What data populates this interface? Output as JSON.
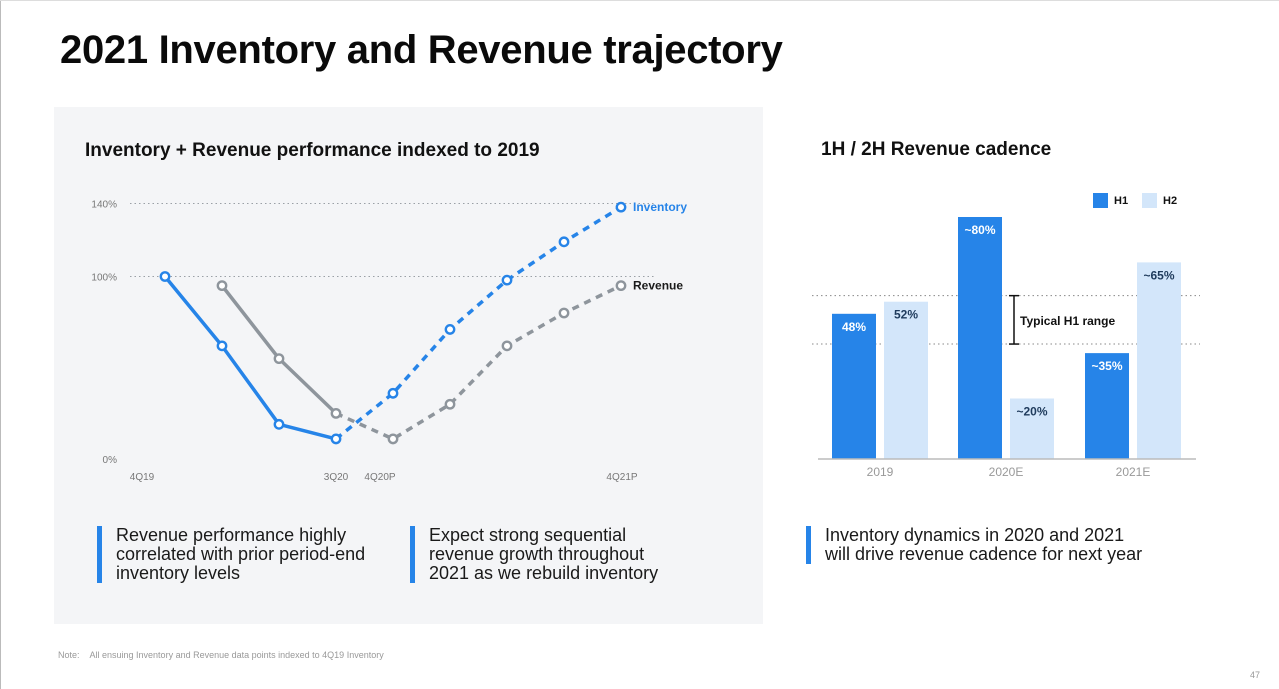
{
  "slide_title": "2021 Inventory and Revenue trajectory",
  "chart_data": [
    {
      "type": "line",
      "title": "Inventory + Revenue performance indexed to 2019",
      "x_ticks": [
        "4Q19",
        "3Q20",
        "4Q20P",
        "4Q21P"
      ],
      "y_ticks": [
        "0%",
        "100%",
        "140%"
      ],
      "ylim": [
        0,
        140
      ],
      "grid": "dotted lines at 100% and 140%",
      "series": [
        {
          "name": "Inventory",
          "color": "#2684e8",
          "actual": [
            [
              0,
              100
            ],
            [
              1,
              62
            ],
            [
              2,
              19
            ],
            [
              3,
              11
            ]
          ],
          "projected": [
            [
              3,
              11
            ],
            [
              4,
              36
            ],
            [
              5,
              71
            ],
            [
              6,
              98
            ],
            [
              7,
              119
            ],
            [
              8,
              138
            ]
          ]
        },
        {
          "name": "Revenue",
          "color": "#8e959c",
          "actual": [
            [
              1,
              95
            ],
            [
              2,
              55
            ],
            [
              3,
              25
            ]
          ],
          "projected": [
            [
              3,
              25
            ],
            [
              4,
              11
            ],
            [
              5,
              30
            ],
            [
              6,
              62
            ],
            [
              7,
              80
            ],
            [
              8,
              95
            ]
          ]
        }
      ]
    },
    {
      "type": "bar",
      "title": "1H / 2H Revenue cadence",
      "categories": [
        "2019",
        "2020E",
        "2021E"
      ],
      "legend": [
        "H1",
        "H2"
      ],
      "legend_position": "top-right",
      "colors": {
        "H1": "#2684e8",
        "H2": "#d3e6fa"
      },
      "series": [
        {
          "name": "H1",
          "values": [
            48,
            80,
            35
          ],
          "labels": [
            "48%",
            "~80%",
            "~35%"
          ]
        },
        {
          "name": "H2",
          "values": [
            52,
            20,
            65
          ],
          "labels": [
            "52%",
            "~20%",
            "~65%"
          ]
        }
      ],
      "ylim": [
        0,
        88
      ],
      "annotation": {
        "text": "Typical H1 range",
        "range": [
          38,
          54
        ]
      }
    }
  ],
  "callouts": [
    "Revenue performance highly correlated with prior period-end inventory levels",
    "Expect strong sequential revenue growth throughout 2021 as we rebuild inventory",
    "Inventory dynamics in 2020 and 2021 will drive revenue cadence for next year"
  ],
  "note": {
    "label": "Note:",
    "text": "All ensuing Inventory and Revenue data points indexed to 4Q19 Inventory"
  },
  "page_number": "47"
}
